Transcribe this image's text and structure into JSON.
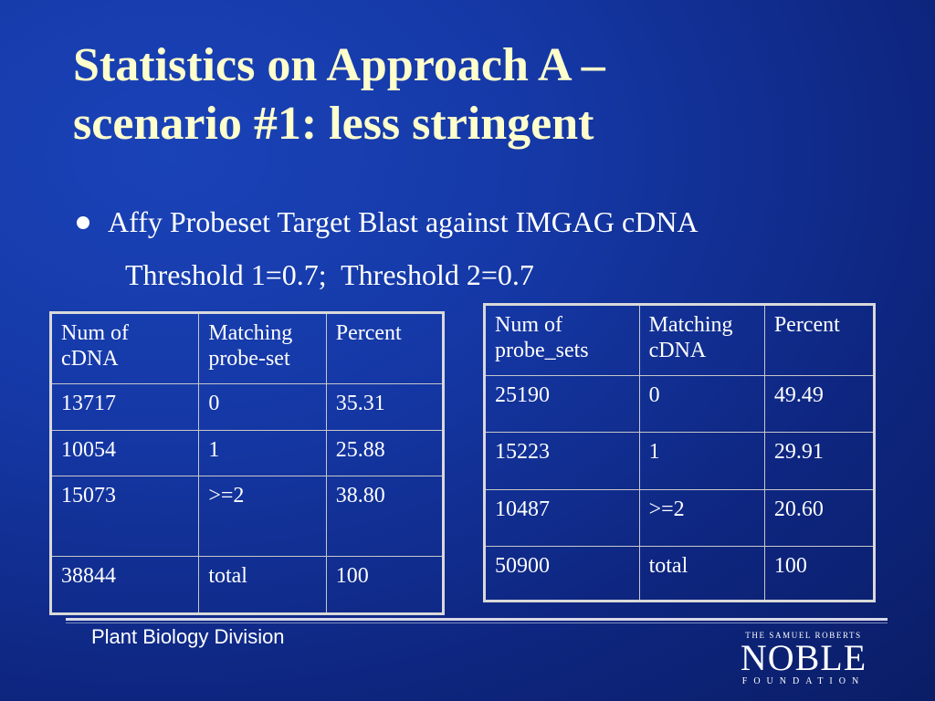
{
  "slide": {
    "title_line1": "Statistics on Approach A –",
    "title_line2": "scenario #1: less stringent",
    "bullet": "Affy Probeset Target Blast against IMGAG cDNA",
    "subline": "Threshold 1=0.7;  Threshold 2=0.7"
  },
  "table_left": {
    "headers": [
      "Num of cDNA",
      "Matching probe-set",
      "Percent"
    ],
    "rows": [
      [
        "13717",
        "0",
        "35.31"
      ],
      [
        "10054",
        "1",
        "25.88"
      ],
      [
        "15073",
        ">=2",
        "38.80"
      ],
      [
        "38844",
        "total",
        "100"
      ]
    ]
  },
  "table_right": {
    "headers": [
      "Num of probe_sets",
      "Matching cDNA",
      "Percent"
    ],
    "rows": [
      [
        "25190",
        "0",
        "49.49"
      ],
      [
        "15223",
        "1",
        "29.91"
      ],
      [
        "10487",
        ">=2",
        "20.60"
      ],
      [
        "50900",
        "total",
        "100"
      ]
    ]
  },
  "footer": {
    "division": "Plant Biology Division",
    "logo_top": "THE SAMUEL ROBERTS",
    "logo_main": "NOBLE",
    "logo_bottom": "FOUNDATION"
  },
  "colors": {
    "background": "#1538a6",
    "title": "#ffffcc",
    "text": "#ffffff"
  }
}
